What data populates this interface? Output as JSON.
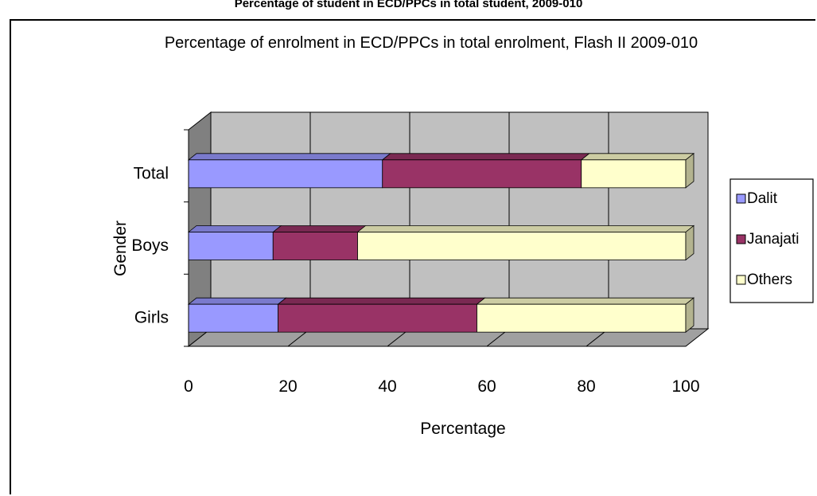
{
  "figure_caption": "Percentage of student in ECD/PPCs in total student, 2009-010",
  "chart_data": {
    "type": "bar",
    "orientation": "horizontal",
    "stacked": true,
    "three_d": true,
    "title": "Percentage of enrolment in ECD/PPCs in total enrolment, Flash II 2009-010",
    "xlabel": "Percentage",
    "ylabel": "Gender",
    "categories": [
      "Total",
      "Boys",
      "Girls"
    ],
    "xlim": [
      0,
      100
    ],
    "xticks": [
      "0",
      "20",
      "40",
      "60",
      "80",
      "100"
    ],
    "grid": true,
    "legend_position": "right",
    "series": [
      {
        "name": "Dalit",
        "color": "#9999ff",
        "values": [
          39,
          17,
          18
        ]
      },
      {
        "name": "Janajati",
        "color": "#993366",
        "values": [
          40,
          17,
          40
        ]
      },
      {
        "name": "Others",
        "color": "#ffffcc",
        "values": [
          21,
          66,
          42
        ]
      }
    ]
  }
}
